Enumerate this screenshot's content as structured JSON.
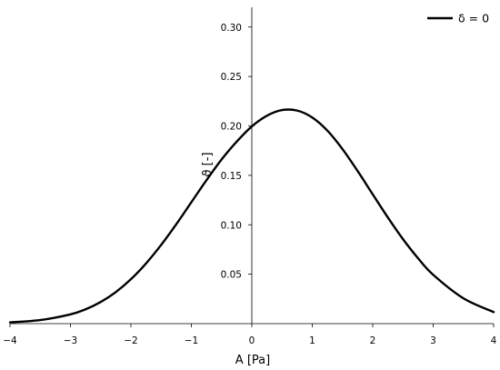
{
  "chart_data": {
    "type": "line",
    "title": "",
    "xlabel": "A [Pa]",
    "ylabel": "ϑ [-]",
    "xlim": [
      -4,
      4
    ],
    "ylim": [
      0,
      0.32
    ],
    "xticks": [
      -4,
      -3,
      -2,
      -1,
      0,
      1,
      2,
      3,
      4
    ],
    "xtick_labels": [
      "−4",
      "−3",
      "−2",
      "−1",
      "0",
      "1",
      "2",
      "3",
      "4"
    ],
    "yticks": [
      0.05,
      0.1,
      0.15,
      0.2,
      0.25,
      0.3
    ],
    "ytick_labels": [
      "0.05",
      "0.10",
      "0.15",
      "0.20",
      "0.25",
      "0.30"
    ],
    "grid": false,
    "axes_style": "centered spines (x-axis at y=0, y-axis at x=0)",
    "legend": {
      "position": "top-right",
      "entries": [
        {
          "label": "δ = 0",
          "color": "#000000"
        }
      ]
    },
    "series": [
      {
        "name": "δ = 0",
        "color": "#000000",
        "x": [
          -4,
          -3.5,
          -3,
          -2.75,
          -2.5,
          -2.25,
          -2,
          -1.75,
          -1.5,
          -1.25,
          -1,
          -0.75,
          -0.5,
          -0.25,
          0,
          0.25,
          0.5,
          0.75,
          1,
          1.25,
          1.5,
          1.75,
          2,
          2.25,
          2.5,
          2.75,
          3,
          3.5,
          4
        ],
        "y": [
          0.0013,
          0.0036,
          0.0094,
          0.0145,
          0.0219,
          0.0319,
          0.0449,
          0.0609,
          0.0796,
          0.1005,
          0.1228,
          0.1451,
          0.1661,
          0.1841,
          0.1995,
          0.2103,
          0.216,
          0.2155,
          0.2085,
          0.1952,
          0.1765,
          0.1544,
          0.1308,
          0.1074,
          0.0855,
          0.0661,
          0.0494,
          0.0256,
          0.0117
        ]
      }
    ]
  }
}
